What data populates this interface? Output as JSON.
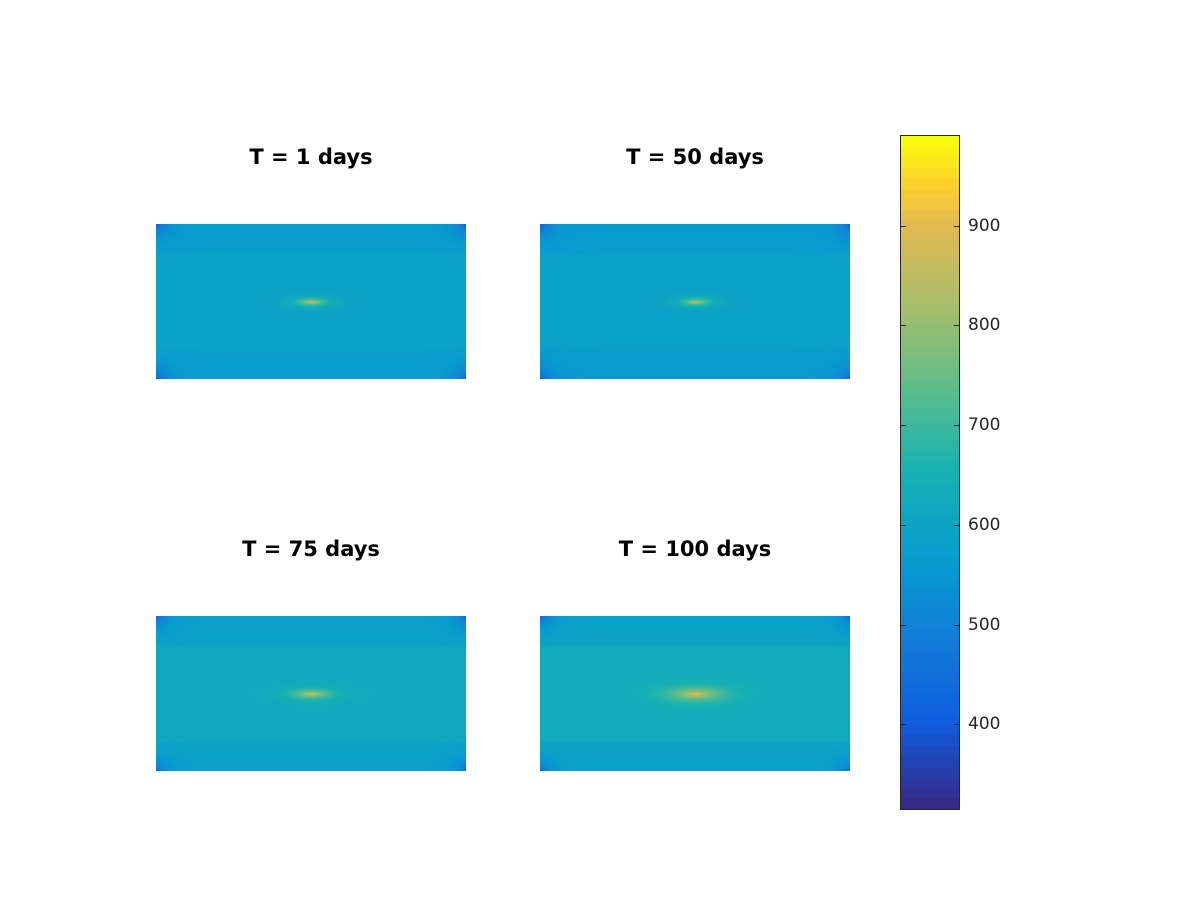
{
  "chart_data": [
    {
      "type": "heatmap",
      "title": "T = 1 days",
      "background_value": 590,
      "side_band_value": 580,
      "corner_value": 430,
      "peak_value": 900,
      "hotspot_spread": "narrow"
    },
    {
      "type": "heatmap",
      "title": "T = 50 days",
      "background_value": 585,
      "side_band_value": 575,
      "corner_value": 430,
      "peak_value": 890,
      "hotspot_spread": "narrow"
    },
    {
      "type": "heatmap",
      "title": "T = 75 days",
      "background_value": 615,
      "side_band_value": 595,
      "corner_value": 460,
      "peak_value": 900,
      "hotspot_spread": "medium"
    },
    {
      "type": "heatmap",
      "title": "T = 100 days",
      "background_value": 625,
      "side_band_value": 600,
      "corner_value": 470,
      "peak_value": 920,
      "hotspot_spread": "wide"
    }
  ],
  "colorbar": {
    "colormap": "parula",
    "range": [
      315,
      990
    ],
    "ticks": [
      400,
      500,
      600,
      700,
      800,
      900
    ],
    "tick_labels": [
      "400",
      "500",
      "600",
      "700",
      "800",
      "900"
    ]
  }
}
